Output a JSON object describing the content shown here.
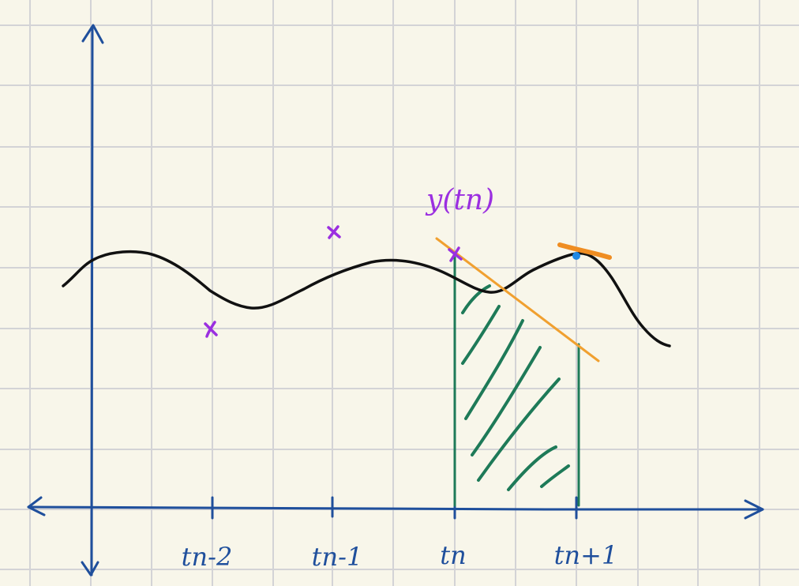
{
  "colors": {
    "background": "#f8f6ea",
    "grid": "#d3d3d6",
    "axis": "#1f4f9c",
    "curve": "#111111",
    "marker": "#9b2fe0",
    "tangent": "#f0a030",
    "tangent_short": "#ef8d22",
    "area": "#1e7a58",
    "dot": "#1e88e5"
  },
  "labels": {
    "point_label": "y(tn)",
    "ticks": [
      "tn-2",
      "tn-1",
      "tn",
      "tn+1"
    ]
  },
  "icons": {
    "markers": "cross-marker-icon",
    "arrowheads": "arrowhead-icon"
  }
}
